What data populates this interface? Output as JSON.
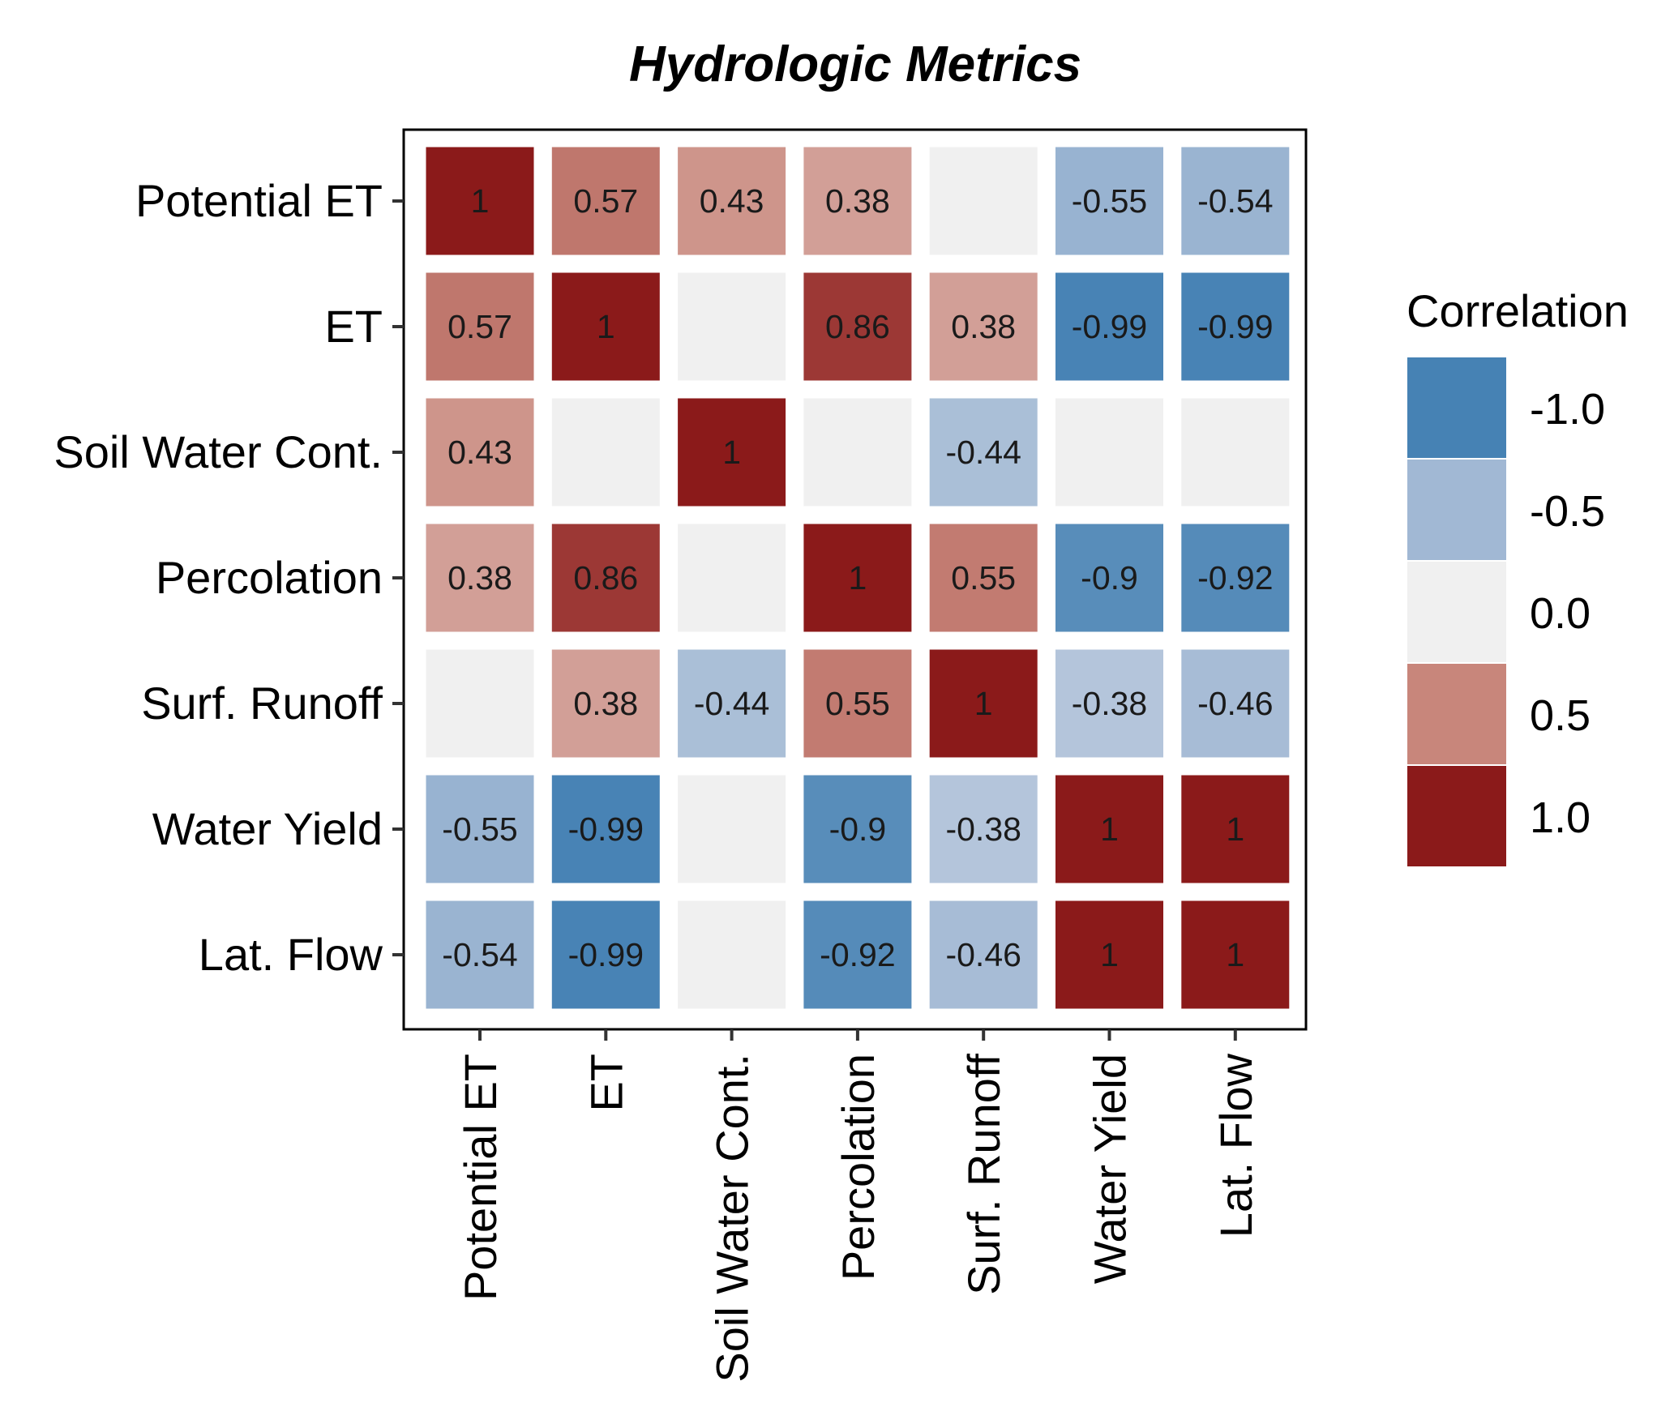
{
  "chart_data": {
    "type": "heatmap",
    "title": "Hydrologic Metrics",
    "row_labels": [
      "Potential ET",
      "ET",
      "Soil Water Cont.",
      "Percolation",
      "Surf. Runoff",
      "Water Yield",
      "Lat. Flow"
    ],
    "column_labels": [
      "Potential ET",
      "ET",
      "Soil Water Cont.",
      "Percolation",
      "Surf. Runoff",
      "Water Yield",
      "Lat. Flow"
    ],
    "values": [
      [
        1,
        0.57,
        0.43,
        0.38,
        null,
        -0.55,
        -0.54
      ],
      [
        0.57,
        1,
        null,
        0.86,
        0.38,
        -0.99,
        -0.99
      ],
      [
        0.43,
        null,
        1,
        null,
        -0.44,
        null,
        null
      ],
      [
        0.38,
        0.86,
        null,
        1,
        0.55,
        -0.9,
        -0.92
      ],
      [
        null,
        0.38,
        -0.44,
        0.55,
        1,
        -0.38,
        -0.46
      ],
      [
        -0.55,
        -0.99,
        null,
        -0.9,
        -0.38,
        1,
        1
      ],
      [
        -0.54,
        -0.99,
        null,
        -0.92,
        -0.46,
        1,
        1
      ]
    ],
    "value_labels": [
      [
        "1",
        "0.57",
        "0.43",
        "0.38",
        "",
        "-0.55",
        "-0.54"
      ],
      [
        "0.57",
        "1",
        "",
        "0.86",
        "0.38",
        "-0.99",
        "-0.99"
      ],
      [
        "0.43",
        "",
        "1",
        "",
        "-0.44",
        "",
        ""
      ],
      [
        "0.38",
        "0.86",
        "",
        "1",
        "0.55",
        "-0.9",
        "-0.92"
      ],
      [
        "",
        "0.38",
        "-0.44",
        "0.55",
        "1",
        "-0.38",
        "-0.46"
      ],
      [
        "-0.55",
        "-0.99",
        "",
        "-0.9",
        "-0.38",
        "1",
        "1"
      ],
      [
        "-0.54",
        "-0.99",
        "",
        "-0.92",
        "-0.46",
        "1",
        "1"
      ]
    ],
    "legend": {
      "title": "Correlation",
      "position": "right",
      "items": [
        {
          "label": "-1.0",
          "color": "#4682b4"
        },
        {
          "label": "-0.5",
          "color": "#a1b8d4"
        },
        {
          "label": "0.0",
          "color": "#f0f0f0"
        },
        {
          "label": "0.5",
          "color": "#c8867b"
        },
        {
          "label": "1.0",
          "color": "#8b1a1a"
        }
      ]
    },
    "colors": {
      "strong_negative": "#4682b4",
      "negative": "#a1b8d4",
      "neutral": "#f0f0f0",
      "positive": "#c8867b",
      "strong_positive": "#8b1a1a"
    }
  }
}
